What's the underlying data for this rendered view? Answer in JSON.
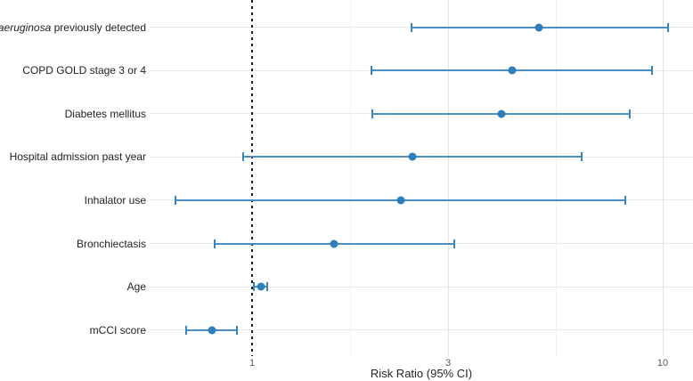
{
  "chart_data": {
    "type": "forest",
    "title": "",
    "xlabel": "Risk Ratio (95% CI)",
    "x_scale": "log10",
    "x_ticks": [
      1,
      3,
      10
    ],
    "x_tick_labels": [
      "1",
      "3",
      "10"
    ],
    "x_major_gridlines": [
      3,
      10
    ],
    "x_minor_gridlines": [
      1.732,
      5.477
    ],
    "reference_line": 1,
    "x_range": [
      0.56,
      11.9
    ],
    "grid": "on",
    "legend": "none",
    "rows": [
      {
        "label": "P. aeruginosa previously detected",
        "label_italic": "P. aeruginosa",
        "label_rest": " previously detected",
        "rr": 5.0,
        "ci_low": 2.45,
        "ci_high": 10.3
      },
      {
        "label": "COPD GOLD stage 3 or 4",
        "rr": 4.3,
        "ci_low": 1.95,
        "ci_high": 9.4
      },
      {
        "label": "Diabetes mellitus",
        "rr": 4.05,
        "ci_low": 1.96,
        "ci_high": 8.3
      },
      {
        "label": "Hospital admission past year",
        "rr": 2.46,
        "ci_low": 0.95,
        "ci_high": 6.35
      },
      {
        "label": "Inhalator use",
        "rr": 2.3,
        "ci_low": 0.65,
        "ci_high": 8.1
      },
      {
        "label": "Bronchiectasis",
        "rr": 1.58,
        "ci_low": 0.81,
        "ci_high": 3.1
      },
      {
        "label": "Age",
        "rr": 1.05,
        "ci_low": 1.01,
        "ci_high": 1.09
      },
      {
        "label": "mCCI score",
        "rr": 0.8,
        "ci_low": 0.69,
        "ci_high": 0.92
      }
    ]
  },
  "axis": {
    "title": "Risk Ratio (95% CI)"
  },
  "colors": {
    "ci_line": "#4a90c6",
    "point": "#2e7ebc",
    "cap": "#3884bf",
    "reference_line": "#1c1c1c",
    "grid_major": "#e4e4e4",
    "grid_minor": "#f1f1f1",
    "row_grid": "#e9e9e9",
    "label_text": "#1f1f1f",
    "tick_text": "#595959",
    "axis_title_text": "#262626"
  }
}
